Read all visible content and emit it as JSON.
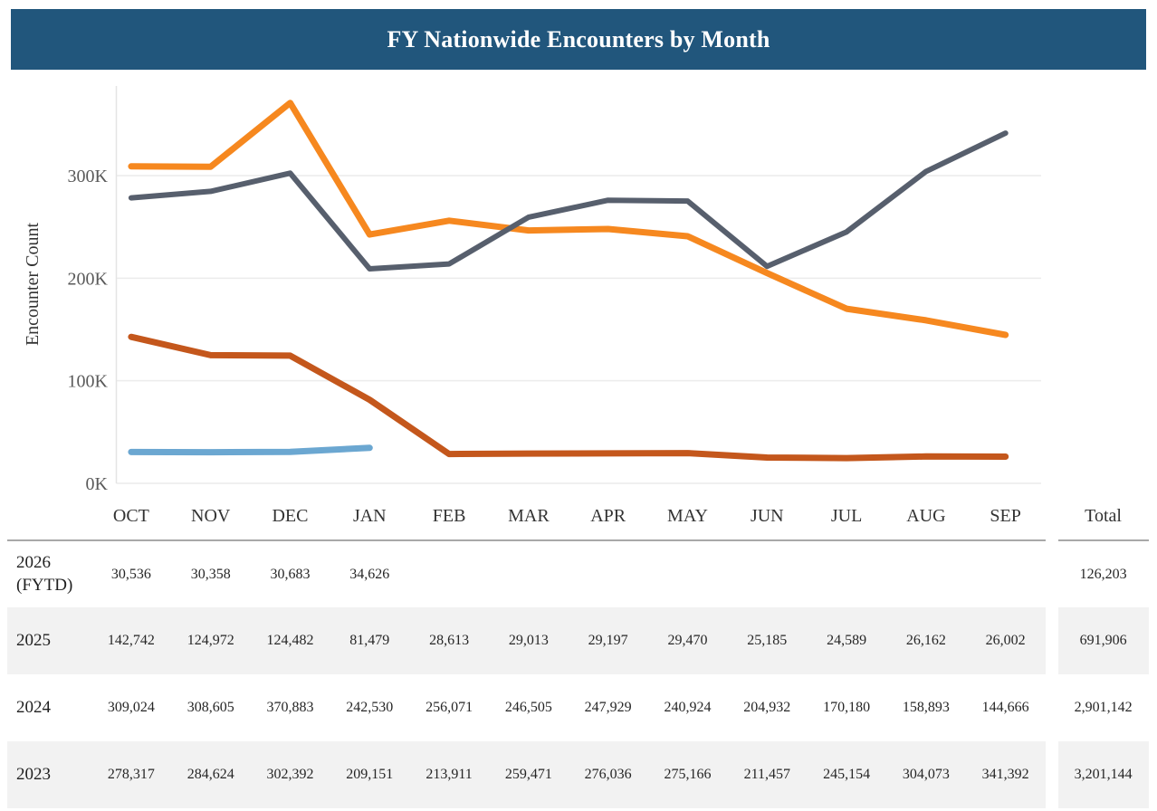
{
  "header": {
    "title": "FY Nationwide Encounters by Month",
    "bar_color": "#21567c"
  },
  "chart_data": {
    "type": "line",
    "title": "FY Nationwide Encounters by Month",
    "xlabel": "",
    "ylabel": "Encounter Count",
    "categories": [
      "OCT",
      "NOV",
      "DEC",
      "JAN",
      "FEB",
      "MAR",
      "APR",
      "MAY",
      "JUN",
      "JUL",
      "AUG",
      "SEP"
    ],
    "ylim": [
      0,
      390000
    ],
    "grid": "horizontal",
    "legend": "none",
    "y_ticks": [
      {
        "label": "0K",
        "value": 0
      },
      {
        "label": "100K",
        "value": 100000
      },
      {
        "label": "200K",
        "value": 200000
      },
      {
        "label": "300K",
        "value": 300000
      }
    ],
    "series": [
      {
        "name": "2026 (FYTD)",
        "color": "#6ba7d1",
        "values": [
          30536,
          30358,
          30683,
          34626
        ]
      },
      {
        "name": "2025",
        "color": "#c4571c",
        "values": [
          142742,
          124972,
          124482,
          81479,
          28613,
          29013,
          29197,
          29470,
          25185,
          24589,
          26162,
          26002
        ]
      },
      {
        "name": "2024",
        "color": "#f6881f",
        "values": [
          309024,
          308605,
          370883,
          242530,
          256071,
          246505,
          247929,
          240924,
          204932,
          170180,
          158893,
          144666
        ]
      },
      {
        "name": "2023",
        "color": "#575f6d",
        "values": [
          278317,
          284624,
          302392,
          209151,
          213911,
          259471,
          276036,
          275166,
          211457,
          245154,
          304073,
          341392
        ]
      }
    ]
  },
  "table": {
    "columns": [
      "OCT",
      "NOV",
      "DEC",
      "JAN",
      "FEB",
      "MAR",
      "APR",
      "MAY",
      "JUN",
      "JUL",
      "AUG",
      "SEP"
    ],
    "total_label": "Total",
    "rows": [
      {
        "year": "2026 (FYTD)",
        "striped": false,
        "values": [
          "30,536",
          "30,358",
          "30,683",
          "34,626",
          "",
          "",
          "",
          "",
          "",
          "",
          "",
          ""
        ],
        "total": "126,203"
      },
      {
        "year": "2025",
        "striped": true,
        "values": [
          "142,742",
          "124,972",
          "124,482",
          "81,479",
          "28,613",
          "29,013",
          "29,197",
          "29,470",
          "25,185",
          "24,589",
          "26,162",
          "26,002"
        ],
        "total": "691,906"
      },
      {
        "year": "2024",
        "striped": false,
        "values": [
          "309,024",
          "308,605",
          "370,883",
          "242,530",
          "256,071",
          "246,505",
          "247,929",
          "240,924",
          "204,932",
          "170,180",
          "158,893",
          "144,666"
        ],
        "total": "2,901,142"
      },
      {
        "year": "2023",
        "striped": true,
        "values": [
          "278,317",
          "284,624",
          "302,392",
          "209,151",
          "213,911",
          "259,471",
          "276,036",
          "275,166",
          "211,457",
          "245,154",
          "304,073",
          "341,392"
        ],
        "total": "3,201,144"
      }
    ]
  }
}
